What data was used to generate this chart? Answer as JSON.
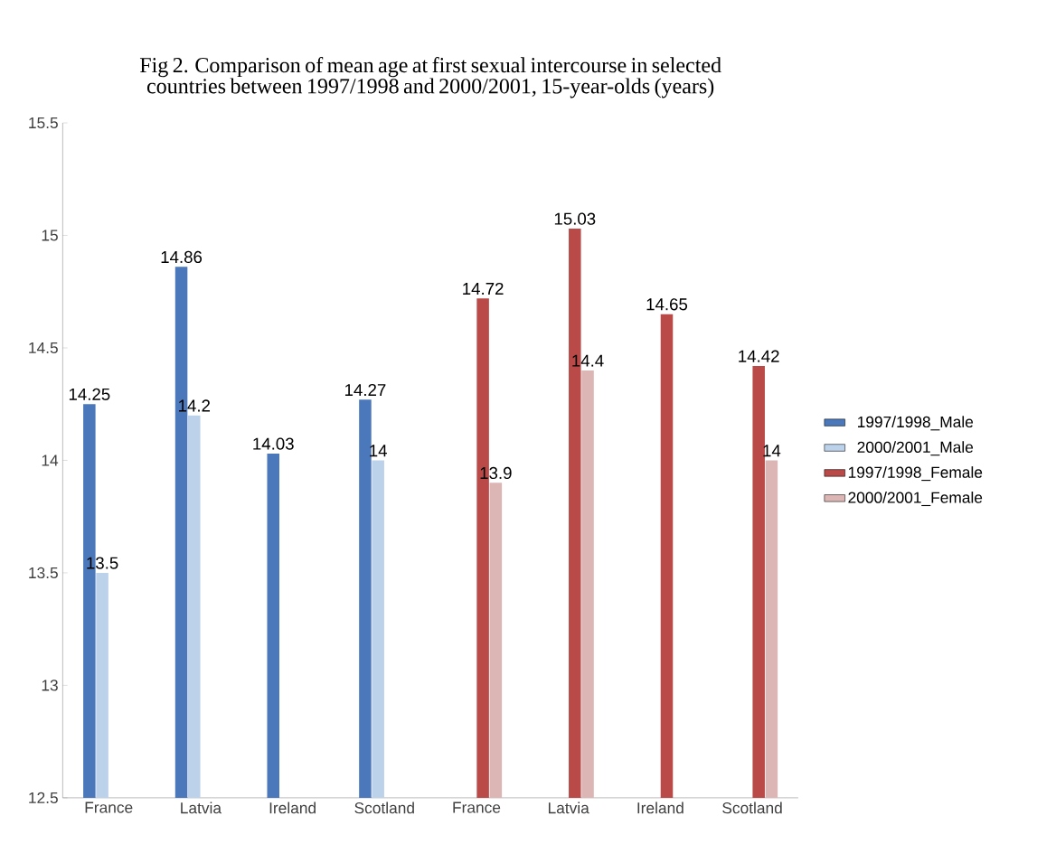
{
  "chart_data": {
    "type": "bar",
    "title": "Fig 2. Comparison of mean age at first sexual intercourse in selected countries between 1997/1998 and 2000/2001, 15-year-olds (years)",
    "categories": [
      "France",
      "Latvia",
      "Ireland",
      "Scotland",
      "France",
      "Latvia",
      "Ireland",
      "Scotland"
    ],
    "series": [
      {
        "name": "1997/1998_Male",
        "color": "#4a78bb",
        "values": [
          14.25,
          14.86,
          14.03,
          14.27,
          null,
          null,
          null,
          null
        ]
      },
      {
        "name": "2000/2001_Male",
        "color": "#bcd1ea",
        "values": [
          13.5,
          14.2,
          null,
          14,
          null,
          null,
          null,
          null
        ]
      },
      {
        "name": "1997/1998_Female",
        "color": "#b94a48",
        "values": [
          null,
          null,
          null,
          null,
          14.72,
          15.03,
          14.65,
          14.42
        ]
      },
      {
        "name": "2000/2001_Female",
        "color": "#dcb5b5",
        "values": [
          null,
          null,
          null,
          null,
          13.9,
          14.4,
          null,
          14
        ]
      }
    ],
    "ylim": [
      12.5,
      15.5
    ],
    "yticks": [
      12.5,
      13,
      13.5,
      14,
      14.5,
      15,
      15.5
    ],
    "data_labels": true,
    "grid": false,
    "legend": "right"
  }
}
